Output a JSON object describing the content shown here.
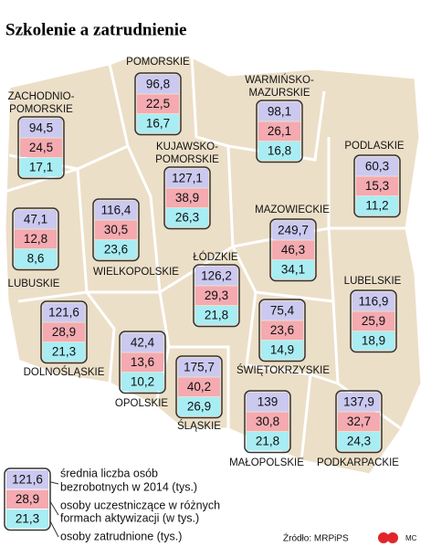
{
  "title": "Szkolenie a zatrudnienie",
  "regions": [
    {
      "name": [
        "POMORSKIE"
      ],
      "values": [
        "96,8",
        "22,5",
        "16,7"
      ]
    },
    {
      "name": [
        "WARMIŃSKO-",
        "MAZURSKIE"
      ],
      "values": [
        "98,1",
        "26,1",
        "16,8"
      ]
    },
    {
      "name": [
        "ZACHODNIO-",
        "POMORSKIE"
      ],
      "values": [
        "94,5",
        "24,5",
        "17,1"
      ]
    },
    {
      "name": [
        "KUJAWSKO-",
        "POMORSKIE"
      ],
      "values": [
        "127,1",
        "38,9",
        "26,3"
      ]
    },
    {
      "name": [
        "PODLASKIE"
      ],
      "values": [
        "60,3",
        "15,3",
        "11,2"
      ]
    },
    {
      "name": [
        "LUBUSKIE"
      ],
      "values": [
        "47,1",
        "12,8",
        "8,6"
      ]
    },
    {
      "name": [
        "WIELKOPOLSKIE"
      ],
      "values": [
        "116,4",
        "30,5",
        "23,6"
      ]
    },
    {
      "name": [
        "MAZOWIECKIE"
      ],
      "values": [
        "249,7",
        "46,3",
        "34,1"
      ]
    },
    {
      "name": [
        "ŁÓDZKIE"
      ],
      "values": [
        "126,2",
        "29,3",
        "21,8"
      ]
    },
    {
      "name": [
        "LUBELSKIE"
      ],
      "values": [
        "116,9",
        "25,9",
        "18,9"
      ]
    },
    {
      "name": [
        "DOLNOŚLĄSKIE"
      ],
      "values": [
        "121,6",
        "28,9",
        "21,3"
      ]
    },
    {
      "name": [
        "ŚWIĘTOKRZYSKIE"
      ],
      "values": [
        "75,4",
        "23,6",
        "14,9"
      ]
    },
    {
      "name": [
        "OPOLSKIE"
      ],
      "values": [
        "42,4",
        "13,6",
        "10,2"
      ]
    },
    {
      "name": [
        "ŚLĄSKIE"
      ],
      "values": [
        "175,7",
        "40,2",
        "26,9"
      ]
    },
    {
      "name": [
        "MAŁOPOLSKIE"
      ],
      "values": [
        "139",
        "30,8",
        "21,8"
      ]
    },
    {
      "name": [
        "PODKARPACKIE"
      ],
      "values": [
        "137,9",
        "32,7",
        "24,3"
      ]
    }
  ],
  "legend": {
    "values": [
      "121,6",
      "28,9",
      "21,3"
    ],
    "texts": [
      [
        "średnia liczba osób",
        "bezrobotnych w 2014 (tys.)"
      ],
      [
        "osoby uczestniczące w różnych",
        "formach aktywizacji (w tys.)"
      ],
      [
        "osoby zatrudnione (tys.)"
      ]
    ]
  },
  "source": "Źródło: MRPiPS",
  "author": "MC"
}
